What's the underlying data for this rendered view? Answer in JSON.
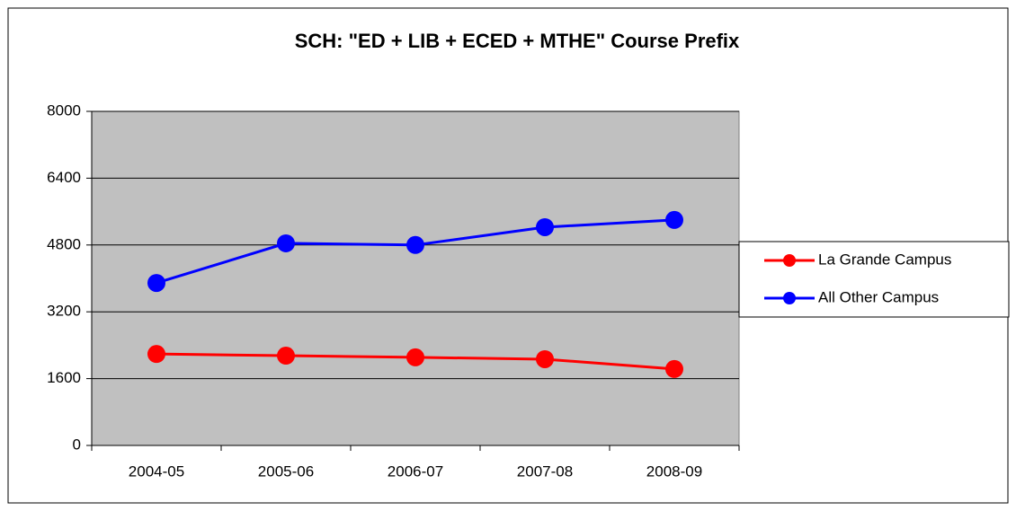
{
  "chart_data": {
    "type": "line",
    "title": "SCH: \"ED + LIB + ECED + MTHE\" Course Prefix",
    "categories": [
      "2004-05",
      "2005-06",
      "2006-07",
      "2007-08",
      "2008-09"
    ],
    "series": [
      {
        "name": "La Grande Campus",
        "color": "#ff0000",
        "values": [
          2190,
          2150,
          2110,
          2065,
          1830
        ]
      },
      {
        "name": "All Other Campus",
        "color": "#0000ff",
        "values": [
          3890,
          4840,
          4800,
          5226,
          5400
        ]
      }
    ],
    "ylim": [
      0,
      8000
    ],
    "yticks": [
      0,
      1600,
      3200,
      4800,
      6400,
      8000
    ],
    "grid": true,
    "legend": "right"
  }
}
